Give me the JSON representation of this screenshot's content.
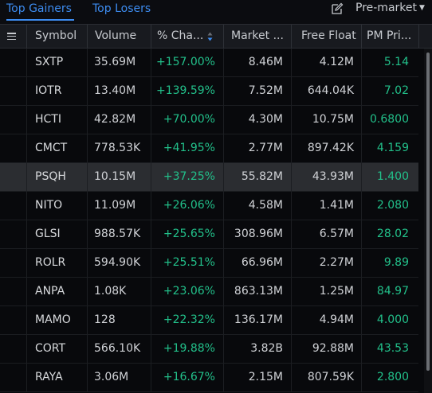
{
  "tabs": {
    "gainers_label": "Top Gainers",
    "losers_label": "Top Losers",
    "active": "gainers"
  },
  "toolbar": {
    "session_label": "Pre-market"
  },
  "columns": [
    "Symbol",
    "Volume",
    "% Cha...",
    "Market ...",
    "Free Float",
    "PM Pri..."
  ],
  "rows": [
    {
      "symbol": "SXTP",
      "volume": "35.69M",
      "change": "+157.00%",
      "market_cap": "8.46M",
      "free_float": "4.12M",
      "pm_price": "5.14"
    },
    {
      "symbol": "IOTR",
      "volume": "13.40M",
      "change": "+139.59%",
      "market_cap": "7.52M",
      "free_float": "644.04K",
      "pm_price": "7.02"
    },
    {
      "symbol": "HCTI",
      "volume": "42.82M",
      "change": "+70.00%",
      "market_cap": "4.30M",
      "free_float": "10.75M",
      "pm_price": "0.6800"
    },
    {
      "symbol": "CMCT",
      "volume": "778.53K",
      "change": "+41.95%",
      "market_cap": "2.77M",
      "free_float": "897.42K",
      "pm_price": "4.159"
    },
    {
      "symbol": "PSQH",
      "volume": "10.15M",
      "change": "+37.25%",
      "market_cap": "55.82M",
      "free_float": "43.93M",
      "pm_price": "1.400",
      "selected": true
    },
    {
      "symbol": "NITO",
      "volume": "11.09M",
      "change": "+26.06%",
      "market_cap": "4.58M",
      "free_float": "1.41M",
      "pm_price": "2.080"
    },
    {
      "symbol": "GLSI",
      "volume": "988.57K",
      "change": "+25.65%",
      "market_cap": "308.96M",
      "free_float": "6.57M",
      "pm_price": "28.02"
    },
    {
      "symbol": "ROLR",
      "volume": "594.90K",
      "change": "+25.51%",
      "market_cap": "66.96M",
      "free_float": "2.27M",
      "pm_price": "9.89"
    },
    {
      "symbol": "ANPA",
      "volume": "1.08K",
      "change": "+23.06%",
      "market_cap": "863.13M",
      "free_float": "1.25M",
      "pm_price": "84.97"
    },
    {
      "symbol": "MAMO",
      "volume": "128",
      "change": "+22.32%",
      "market_cap": "136.17M",
      "free_float": "4.94M",
      "pm_price": "4.000"
    },
    {
      "symbol": "CORT",
      "volume": "566.10K",
      "change": "+19.88%",
      "market_cap": "3.82B",
      "free_float": "92.88M",
      "pm_price": "43.53"
    },
    {
      "symbol": "RAYA",
      "volume": "3.06M",
      "change": "+16.67%",
      "market_cap": "2.15M",
      "free_float": "807.59K",
      "pm_price": "2.800"
    }
  ],
  "colors": {
    "accent": "#3d8cf0",
    "positive": "#22c08a",
    "background": "#08090c",
    "header_bg": "#181a1f",
    "selected_row": "#2b2d31"
  },
  "icons": {
    "menu": "menu-icon",
    "edit": "edit-icon",
    "sort": "sort-desc-icon",
    "dropdown": "chevron-down-icon"
  }
}
